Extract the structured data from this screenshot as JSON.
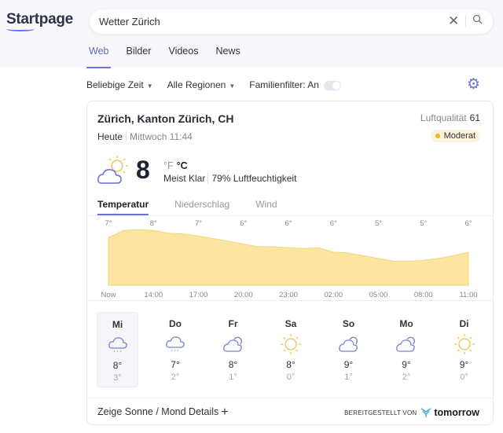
{
  "logo": "Startpage",
  "search": {
    "value": "Wetter Zürich",
    "clear_icon": "close-icon",
    "search_icon": "search-icon"
  },
  "tabs": [
    {
      "label": "Web",
      "active": true
    },
    {
      "label": "Bilder"
    },
    {
      "label": "Videos"
    },
    {
      "label": "News"
    }
  ],
  "filters": {
    "time": "Beliebige Zeit",
    "region": "Alle Regionen",
    "family": "Familienfilter: An",
    "family_on": true
  },
  "weather": {
    "location": "Zürich, Kanton Zürich, CH",
    "air_quality_label": "Luftqualität",
    "air_quality_value": "61",
    "air_quality_status": "Moderat",
    "air_quality_color": "#f0b429",
    "today": "Heute",
    "datetime": "Mittwoch 11:44",
    "current_temp": "8",
    "unit_f": "°F",
    "unit_c": "°C",
    "condition": "Meist Klar",
    "humidity": "79% Luftfeuchtigkeit",
    "tabs": [
      "Temperatur",
      "Niederschlag",
      "Wind"
    ],
    "hourly": {
      "labels": [
        "Now",
        "14:00",
        "17:00",
        "20:00",
        "23:00",
        "02:00",
        "05:00",
        "08:00",
        "11:00"
      ],
      "temps": [
        "7°",
        "8°",
        "7°",
        "6°",
        "6°",
        "6°",
        "5°",
        "5°",
        "6°"
      ],
      "curve": [
        7.2,
        8,
        8.1,
        8,
        7.7,
        7.6,
        7.4,
        7.1,
        6.8,
        6.5,
        6.2,
        6.2,
        6.1,
        6,
        6.1,
        5.6,
        5.5,
        5.2,
        4.9,
        4.6,
        4.6,
        4.7,
        4.9,
        5.2,
        5.6
      ],
      "fill_color": "#fbe5a0"
    },
    "daily": [
      {
        "day": "Mi",
        "icon": "rain-cloud",
        "hi": "8°",
        "lo": "3°",
        "selected": true
      },
      {
        "day": "Do",
        "icon": "rain-cloud",
        "hi": "7°",
        "lo": "2°"
      },
      {
        "day": "Fr",
        "icon": "cloudy",
        "hi": "8°",
        "lo": "1°"
      },
      {
        "day": "Sa",
        "icon": "sun",
        "hi": "8°",
        "lo": "0°"
      },
      {
        "day": "So",
        "icon": "cloudy",
        "hi": "9°",
        "lo": "1°"
      },
      {
        "day": "Mo",
        "icon": "cloudy",
        "hi": "9°",
        "lo": "2°"
      },
      {
        "day": "Di",
        "icon": "sun",
        "hi": "9°",
        "lo": "0°"
      }
    ],
    "sun_moon": "Zeige Sonne / Mond Details",
    "provided_by": "BEREITGESTELLT VON",
    "provider": "tomorrow"
  }
}
